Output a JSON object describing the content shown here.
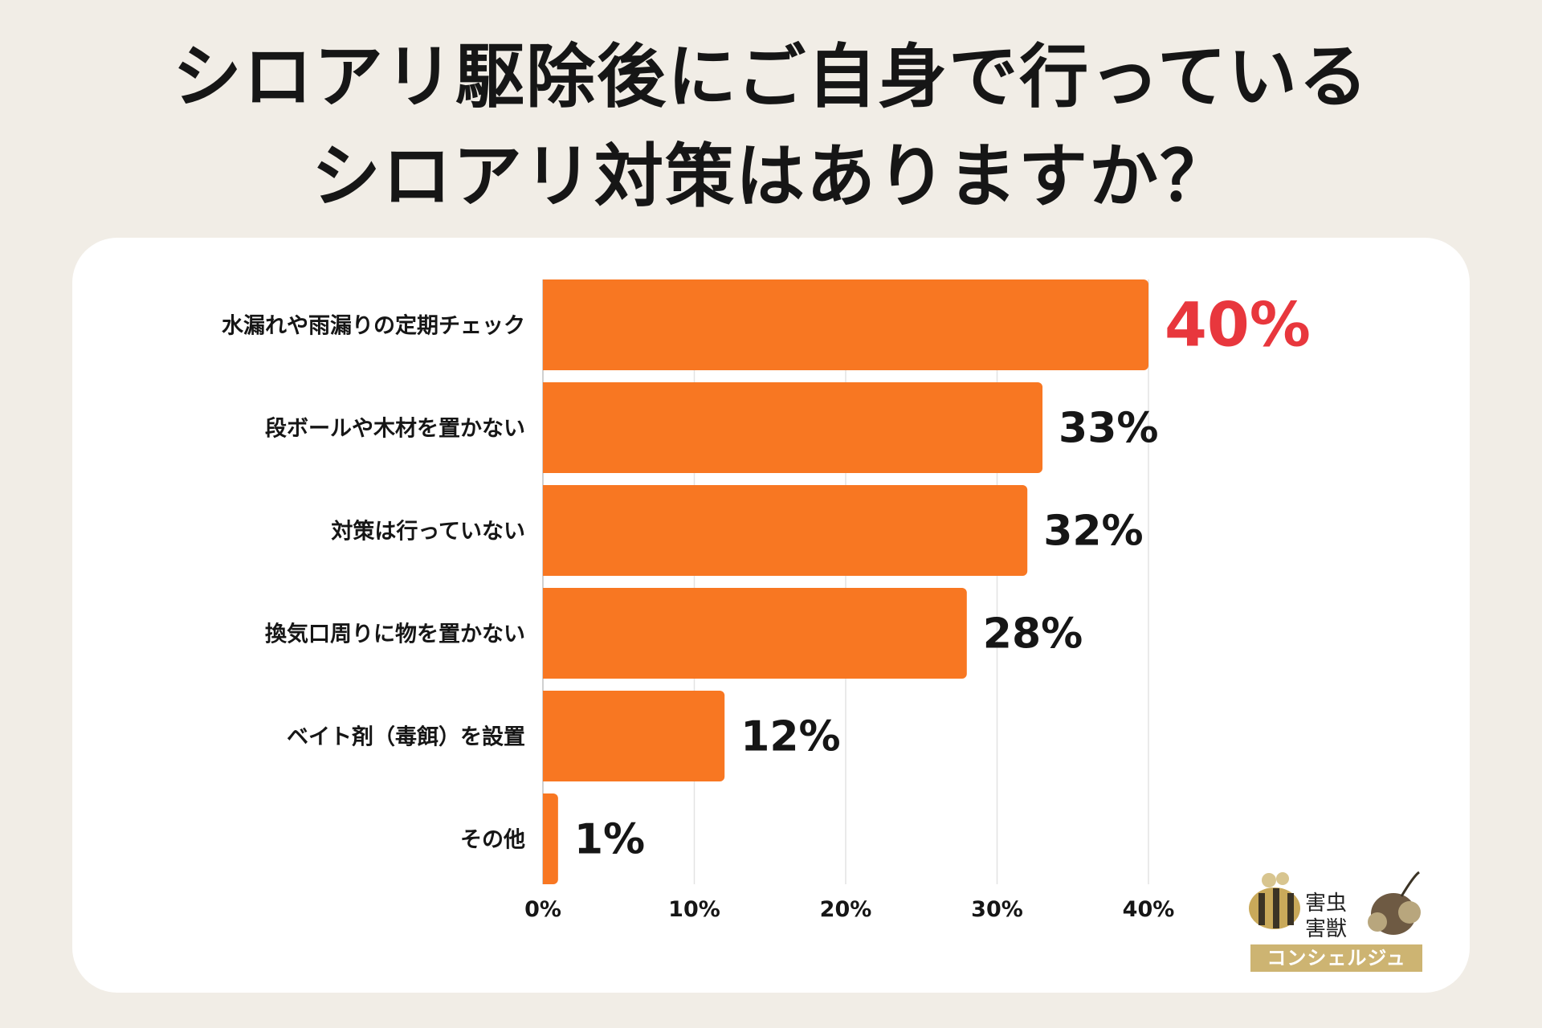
{
  "title_lines": [
    "シロアリ駆除後にご自身で行っている",
    "シロアリ対策はありますか？"
  ],
  "colors": {
    "bar": "#f87722",
    "highlight": "#e8373d",
    "text": "#161616",
    "grid": "#e3e3e3"
  },
  "chart_data": {
    "type": "bar",
    "orientation": "horizontal",
    "categories": [
      "水漏れや雨漏りの定期チェック",
      "段ボールや木材を置かない",
      "対策は行っていない",
      "換気口周りに物を置かない",
      "ベイト剤（毒餌）を設置",
      "その他"
    ],
    "values": [
      40,
      33,
      32,
      28,
      12,
      1
    ],
    "value_labels": [
      "40%",
      "33%",
      "32%",
      "28%",
      "12%",
      "1%"
    ],
    "highlight_index": 0,
    "xlim": [
      0,
      40
    ],
    "x_ticks": [
      0,
      10,
      20,
      30,
      40
    ],
    "x_tick_labels": [
      "0%",
      "10%",
      "20%",
      "30%",
      "40%"
    ],
    "grid": true
  },
  "logo": {
    "line1": "害虫",
    "line2": "害獣",
    "band": "コンシェルジュ",
    "icon_names": [
      "bee-icon",
      "mouse-icon"
    ]
  }
}
